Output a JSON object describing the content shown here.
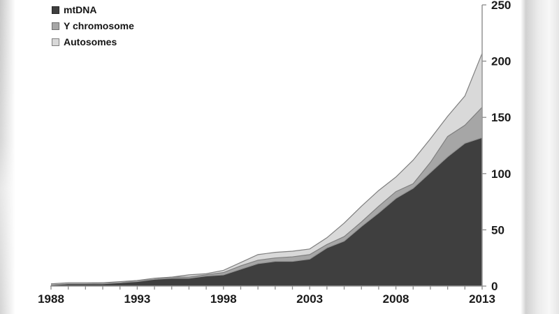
{
  "chart_data": {
    "type": "area",
    "stacked": true,
    "title": "",
    "xlabel": "",
    "ylabel": "",
    "x": [
      1988,
      1989,
      1990,
      1991,
      1992,
      1993,
      1994,
      1995,
      1996,
      1997,
      1998,
      1999,
      2000,
      2001,
      2002,
      2003,
      2004,
      2005,
      2006,
      2007,
      2008,
      2009,
      2010,
      2011,
      2012,
      2013
    ],
    "series": [
      {
        "name": "mtDNA",
        "color": "#3f3f3f",
        "edge_color": "#969696",
        "swatch_border": "#262626",
        "values": [
          1,
          2,
          2,
          2,
          3,
          4,
          6,
          7,
          7,
          9,
          10,
          15,
          20,
          22,
          22,
          24,
          34,
          40,
          53,
          65,
          78,
          87,
          101,
          115,
          127,
          132
        ]
      },
      {
        "name": "Y chromosome",
        "color": "#a6a6a6",
        "edge_color": "#7f7f7f",
        "swatch_border": "#6e6e6e",
        "values": [
          0,
          0,
          0,
          1,
          0,
          1,
          0,
          1,
          1,
          1,
          2,
          3,
          3,
          3,
          4,
          4,
          3,
          4,
          4,
          6,
          6,
          4,
          9,
          18,
          16,
          27
        ]
      },
      {
        "name": "Autosomes",
        "color": "#d9d9d9",
        "edge_color": "#7f7f7f",
        "swatch_border": "#7f7f7f",
        "values": [
          1,
          1,
          1,
          0,
          1,
          0,
          1,
          0,
          2,
          1,
          2,
          3,
          5,
          5,
          5,
          5,
          6,
          12,
          14,
          14,
          13,
          21,
          21,
          18,
          26,
          48
        ]
      }
    ],
    "x_tick_step_years": 1,
    "x_label_years": [
      1988,
      1993,
      1998,
      2003,
      2008,
      2013
    ],
    "y_ticks": [
      0,
      50,
      100,
      150,
      200,
      250
    ],
    "ylim": [
      0,
      250
    ],
    "y_axis_side": "right",
    "grid": false,
    "legend_position": "top-left",
    "axis_color": "#9b9b9b",
    "tick_color": "#8c8c8c",
    "label_color": "#1a1a1a"
  }
}
